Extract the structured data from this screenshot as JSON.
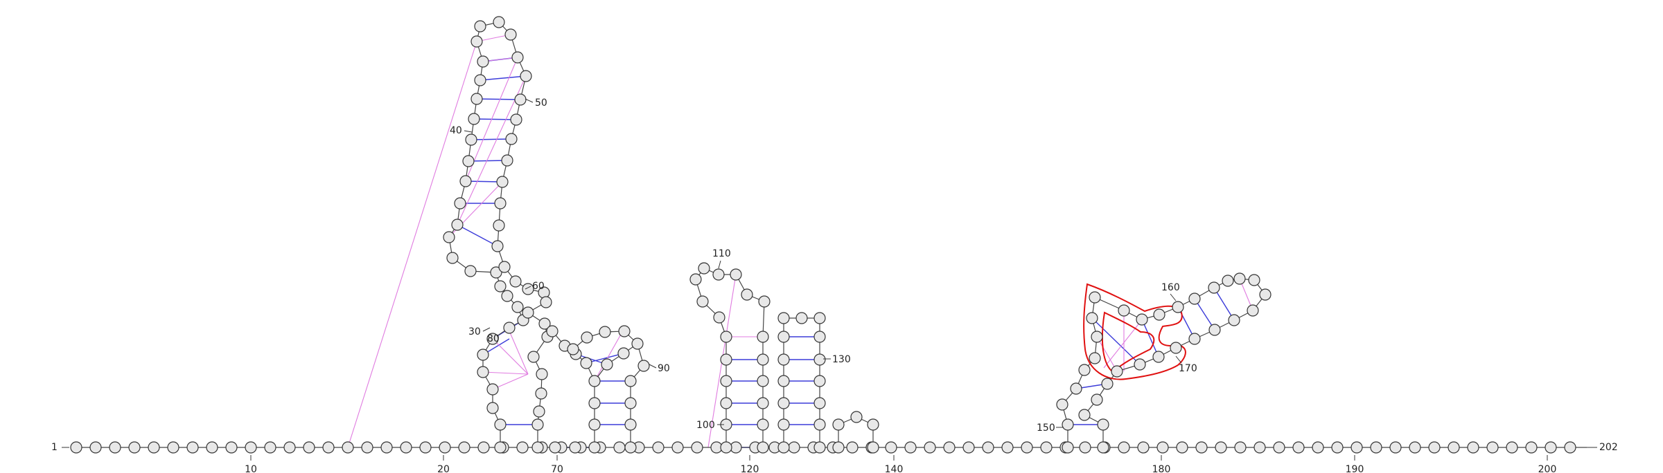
{
  "sequence_length": 202,
  "labels": {
    "start": "1",
    "end": "202",
    "l30": "30",
    "l40": "40",
    "l50": "50",
    "l60": "60",
    "l80": "80",
    "l90": "90",
    "l100": "100",
    "l110": "110",
    "l130": "130",
    "l150": "150",
    "l160": "160",
    "l170": "170"
  },
  "axis_ticks": [
    "10",
    "20",
    "70",
    "120",
    "140",
    "180",
    "190",
    "200"
  ],
  "colors": {
    "canonical_pair": "#3b3bd9",
    "noncanonical_pair": "#e07be0",
    "highlight": "#e01010",
    "nucleotide_fill": "#e8e8e8"
  }
}
